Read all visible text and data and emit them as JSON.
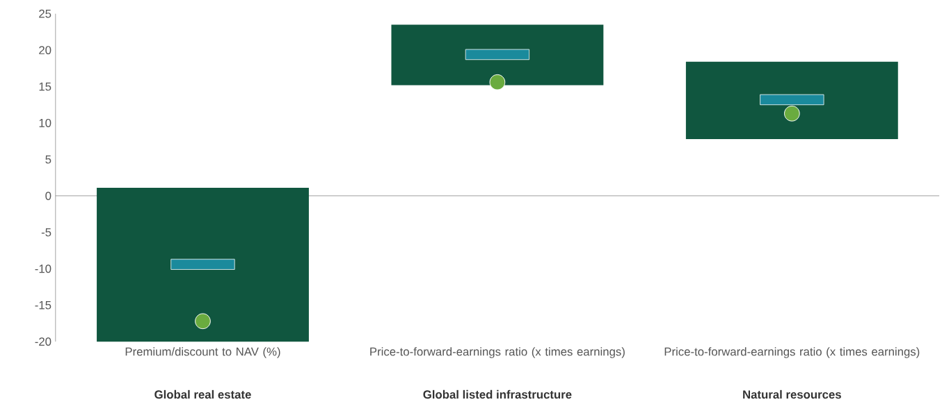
{
  "chart_data": {
    "type": "bar",
    "categories": [
      "Global real estate",
      "Global listed infrastructure",
      "Natural resources"
    ],
    "annotations": [
      "Premium/discount to NAV (%)",
      "Price-to-forward-earnings ratio (x times earnings)",
      "Price-to-forward-earnings ratio (x times earnings)"
    ],
    "series": [
      {
        "color": "#10563f",
        "base": [
          -20,
          15.2,
          7.8
        ],
        "values": [
          21.1,
          8.3,
          10.6
        ]
      },
      {
        "color": "#1a8a9c",
        "base": [
          -10.1,
          18.7,
          12.5
        ],
        "values": [
          1.4,
          1.4,
          1.4
        ]
      },
      {
        "type": "scatter",
        "marker": "circle",
        "color": "#6aab3f",
        "values": [
          -17.2,
          15.6,
          11.3
        ]
      }
    ],
    "ylim": [
      -20,
      25
    ],
    "yticks": [
      -20,
      -15,
      -10,
      -5,
      0,
      5,
      10,
      15,
      20,
      25
    ],
    "ref_lines": [
      {
        "axis": "y",
        "value": 0,
        "color": "#8a8a8a"
      }
    ]
  }
}
